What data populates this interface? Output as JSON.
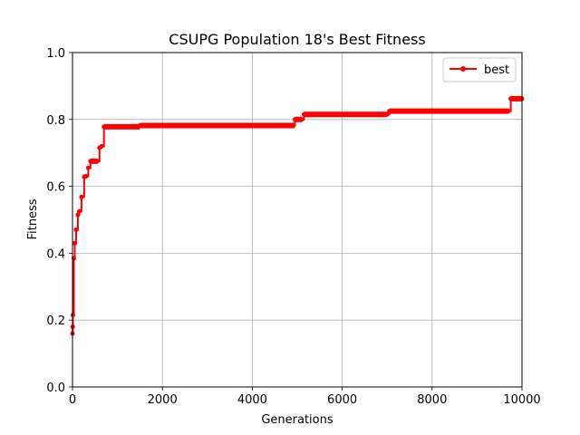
{
  "chart_data": {
    "type": "line",
    "title": "CSUPG Population 18's Best Fitness",
    "xlabel": "Generations",
    "ylabel": "Fitness",
    "xlim": [
      0,
      10000
    ],
    "ylim": [
      0,
      1.0
    ],
    "xticks": [
      0,
      2000,
      4000,
      6000,
      8000,
      10000
    ],
    "xtick_labels": [
      "0",
      "2000",
      "4000",
      "6000",
      "8000",
      "10000"
    ],
    "yticks": [
      0.0,
      0.2,
      0.4,
      0.6,
      0.8,
      1.0
    ],
    "ytick_labels": [
      "0.0",
      "0.2",
      "0.4",
      "0.6",
      "0.8",
      "1.0"
    ],
    "grid": true,
    "legend_position": "top-right",
    "series": [
      {
        "name": "best",
        "color": "#ff0000",
        "marker": "circle",
        "step": true,
        "x": [
          0,
          5,
          10,
          30,
          50,
          80,
          120,
          150,
          200,
          260,
          300,
          350,
          400,
          550,
          600,
          650,
          700,
          1500,
          4950,
          5100,
          5150,
          7000,
          7050,
          9700,
          9750,
          10000
        ],
        "y": [
          0.16,
          0.18,
          0.215,
          0.385,
          0.43,
          0.47,
          0.515,
          0.525,
          0.568,
          0.628,
          0.63,
          0.655,
          0.675,
          0.675,
          0.715,
          0.72,
          0.778,
          0.782,
          0.8,
          0.8,
          0.815,
          0.815,
          0.825,
          0.825,
          0.862,
          0.862
        ]
      }
    ]
  }
}
